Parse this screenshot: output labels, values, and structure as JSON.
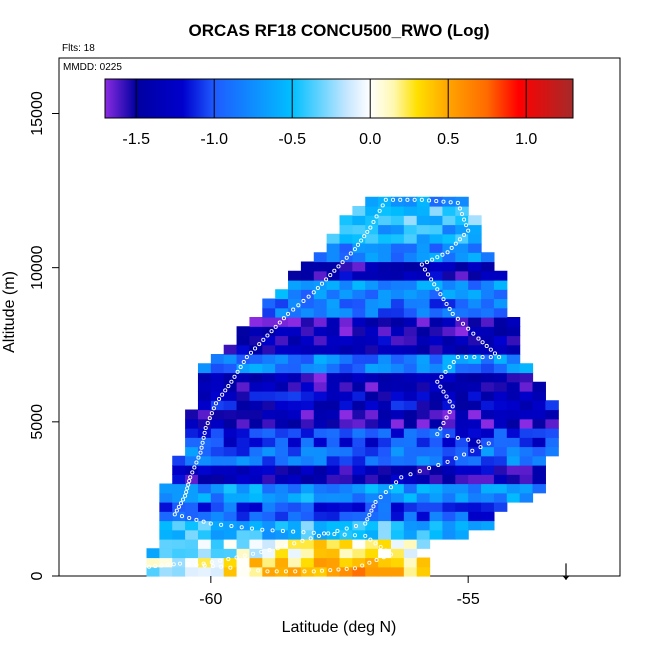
{
  "chart_data": {
    "type": "heatmap",
    "title": "ORCAS RF18 CONCU500_RWO (Log)",
    "flights_note": "Flts: 18",
    "date_note": "MMDD: 0225",
    "xlabel": "Latitude (deg N)",
    "ylabel": "Altitude (m)",
    "xlim": [
      -62.95,
      -52.05
    ],
    "ylim": [
      0,
      16800
    ],
    "xticks": [
      -60,
      -55
    ],
    "xtick_labels": [
      "-60",
      "-55"
    ],
    "yticks": [
      0,
      5000,
      10000,
      15000
    ],
    "ytick_labels": [
      "0",
      "5000",
      "10000",
      "15000"
    ],
    "colorbar": {
      "range": [
        -1.7,
        1.3
      ],
      "ticks": [
        -1.5,
        -1.0,
        -0.5,
        0.0,
        0.5,
        1.0
      ],
      "tick_labels": [
        "-1.5",
        "-1.0",
        "-0.5",
        "0.0",
        "0.5",
        "1.0"
      ],
      "stops": [
        {
          "value": -1.7,
          "color": "#8a2be2"
        },
        {
          "value": -1.5,
          "color": "#0000a0"
        },
        {
          "value": -1.2,
          "color": "#0000cd"
        },
        {
          "value": -1.0,
          "color": "#1e5bff"
        },
        {
          "value": -0.5,
          "color": "#00bfff"
        },
        {
          "value": -0.15,
          "color": "#c6e6ff"
        },
        {
          "value": 0.0,
          "color": "#ffffff"
        },
        {
          "value": 0.15,
          "color": "#fff8b0"
        },
        {
          "value": 0.3,
          "color": "#ffe000"
        },
        {
          "value": 0.5,
          "color": "#ffa500"
        },
        {
          "value": 0.75,
          "color": "#ff6a00"
        },
        {
          "value": 0.95,
          "color": "#ff0000"
        },
        {
          "value": 1.3,
          "color": "#a52a2a"
        }
      ]
    },
    "grid": {
      "lat_step": 0.25,
      "alt_step": 300,
      "envelope": [
        {
          "alt": 300,
          "min_lat": -61.2,
          "max_lat": -55.9
        },
        {
          "alt": 900,
          "min_lat": -61.0,
          "max_lat": -56.2
        },
        {
          "alt": 1500,
          "min_lat": -60.9,
          "max_lat": -54.6
        },
        {
          "alt": 2100,
          "min_lat": -60.9,
          "max_lat": -54.5
        },
        {
          "alt": 2700,
          "min_lat": -60.8,
          "max_lat": -53.5
        },
        {
          "alt": 3300,
          "min_lat": -60.7,
          "max_lat": -53.5
        },
        {
          "alt": 3900,
          "min_lat": -60.5,
          "max_lat": -53.5
        },
        {
          "alt": 4500,
          "min_lat": -60.5,
          "max_lat": -53.3
        },
        {
          "alt": 5100,
          "min_lat": -60.4,
          "max_lat": -53.3
        },
        {
          "alt": 5700,
          "min_lat": -60.2,
          "max_lat": -53.5
        },
        {
          "alt": 6300,
          "min_lat": -60.2,
          "max_lat": -53.8
        },
        {
          "alt": 6900,
          "min_lat": -60.0,
          "max_lat": -54.0
        },
        {
          "alt": 7500,
          "min_lat": -59.6,
          "max_lat": -54.2
        },
        {
          "alt": 8100,
          "min_lat": -59.2,
          "max_lat": -54.2
        },
        {
          "alt": 8700,
          "min_lat": -58.9,
          "max_lat": -54.3
        },
        {
          "alt": 9300,
          "min_lat": -58.5,
          "max_lat": -54.4
        },
        {
          "alt": 9900,
          "min_lat": -58.2,
          "max_lat": -54.5
        },
        {
          "alt": 10500,
          "min_lat": -57.8,
          "max_lat": -54.8
        },
        {
          "alt": 11100,
          "min_lat": -57.5,
          "max_lat": -54.9
        },
        {
          "alt": 11700,
          "min_lat": -57.3,
          "max_lat": -55.0
        },
        {
          "alt": 12300,
          "min_lat": -56.8,
          "max_lat": -55.0
        }
      ],
      "layers": [
        {
          "alt_min": 0,
          "alt_max": 600,
          "value": 0.55
        },
        {
          "alt_min": 600,
          "alt_max": 1200,
          "value": 0.25
        },
        {
          "alt_min": 1200,
          "alt_max": 1800,
          "value": -0.5
        },
        {
          "alt_min": 1800,
          "alt_max": 2400,
          "value": -1.0
        },
        {
          "alt_min": 2400,
          "alt_max": 3000,
          "value": -0.7
        },
        {
          "alt_min": 3000,
          "alt_max": 3600,
          "value": -1.4
        },
        {
          "alt_min": 3600,
          "alt_max": 4200,
          "value": -0.9
        },
        {
          "alt_min": 4200,
          "alt_max": 4800,
          "value": -1.1
        },
        {
          "alt_min": 4800,
          "alt_max": 5400,
          "value": -1.5
        },
        {
          "alt_min": 5400,
          "alt_max": 6000,
          "value": -1.3
        },
        {
          "alt_min": 6000,
          "alt_max": 6600,
          "value": -1.45
        },
        {
          "alt_min": 6600,
          "alt_max": 7200,
          "value": -0.8
        },
        {
          "alt_min": 7200,
          "alt_max": 7800,
          "value": -1.4
        },
        {
          "alt_min": 7800,
          "alt_max": 8400,
          "value": -1.5
        },
        {
          "alt_min": 8400,
          "alt_max": 9000,
          "value": -0.9
        },
        {
          "alt_min": 9000,
          "alt_max": 9600,
          "value": -0.75
        },
        {
          "alt_min": 9600,
          "alt_max": 10200,
          "value": -1.4
        },
        {
          "alt_min": 10200,
          "alt_max": 10800,
          "value": -0.8
        },
        {
          "alt_min": 10800,
          "alt_max": 11400,
          "value": -0.6
        },
        {
          "alt_min": 11400,
          "alt_max": 12000,
          "value": -0.45
        },
        {
          "alt_min": 12000,
          "alt_max": 12600,
          "value": -0.7
        }
      ]
    },
    "flight_track": [
      {
        "lat": -61.2,
        "alt": 300
      },
      {
        "lat": -60.6,
        "alt": 400
      },
      {
        "lat": -59.8,
        "alt": 300
      },
      {
        "lat": -58.9,
        "alt": 150
      },
      {
        "lat": -58.0,
        "alt": 150
      },
      {
        "lat": -57.2,
        "alt": 250
      },
      {
        "lat": -56.5,
        "alt": 700
      },
      {
        "lat": -57.0,
        "alt": 1300
      },
      {
        "lat": -58.0,
        "alt": 1400
      },
      {
        "lat": -59.0,
        "alt": 1500
      },
      {
        "lat": -60.0,
        "alt": 1700
      },
      {
        "lat": -60.7,
        "alt": 2000
      },
      {
        "lat": -60.5,
        "alt": 2600
      },
      {
        "lat": -60.4,
        "alt": 3200
      },
      {
        "lat": -60.2,
        "alt": 4000
      },
      {
        "lat": -60.1,
        "alt": 4800
      },
      {
        "lat": -59.9,
        "alt": 5600
      },
      {
        "lat": -59.6,
        "alt": 6300
      },
      {
        "lat": -59.3,
        "alt": 7100
      },
      {
        "lat": -58.9,
        "alt": 7800
      },
      {
        "lat": -58.5,
        "alt": 8500
      },
      {
        "lat": -58.0,
        "alt": 9200
      },
      {
        "lat": -57.6,
        "alt": 9900
      },
      {
        "lat": -57.2,
        "alt": 10600
      },
      {
        "lat": -56.9,
        "alt": 11300
      },
      {
        "lat": -56.6,
        "alt": 12200
      },
      {
        "lat": -55.9,
        "alt": 12200
      },
      {
        "lat": -55.2,
        "alt": 12100
      },
      {
        "lat": -55.0,
        "alt": 11200
      },
      {
        "lat": -55.4,
        "alt": 10500
      },
      {
        "lat": -55.9,
        "alt": 10100
      },
      {
        "lat": -55.6,
        "alt": 9300
      },
      {
        "lat": -55.3,
        "alt": 8500
      },
      {
        "lat": -54.8,
        "alt": 7700
      },
      {
        "lat": -54.4,
        "alt": 7100
      },
      {
        "lat": -55.2,
        "alt": 7100
      },
      {
        "lat": -55.6,
        "alt": 6300
      },
      {
        "lat": -55.3,
        "alt": 5500
      },
      {
        "lat": -55.6,
        "alt": 4600
      },
      {
        "lat": -54.6,
        "alt": 4300
      },
      {
        "lat": -55.4,
        "alt": 3700
      },
      {
        "lat": -56.3,
        "alt": 3200
      },
      {
        "lat": -56.8,
        "alt": 2400
      },
      {
        "lat": -57.0,
        "alt": 1700
      },
      {
        "lat": -57.9,
        "alt": 1300
      },
      {
        "lat": -58.7,
        "alt": 900
      },
      {
        "lat": -59.5,
        "alt": 600
      },
      {
        "lat": -60.3,
        "alt": 350
      }
    ],
    "annotations": [
      {
        "type": "arrow-down",
        "label": "↓",
        "lat": -53.1,
        "alt": 0
      }
    ]
  }
}
